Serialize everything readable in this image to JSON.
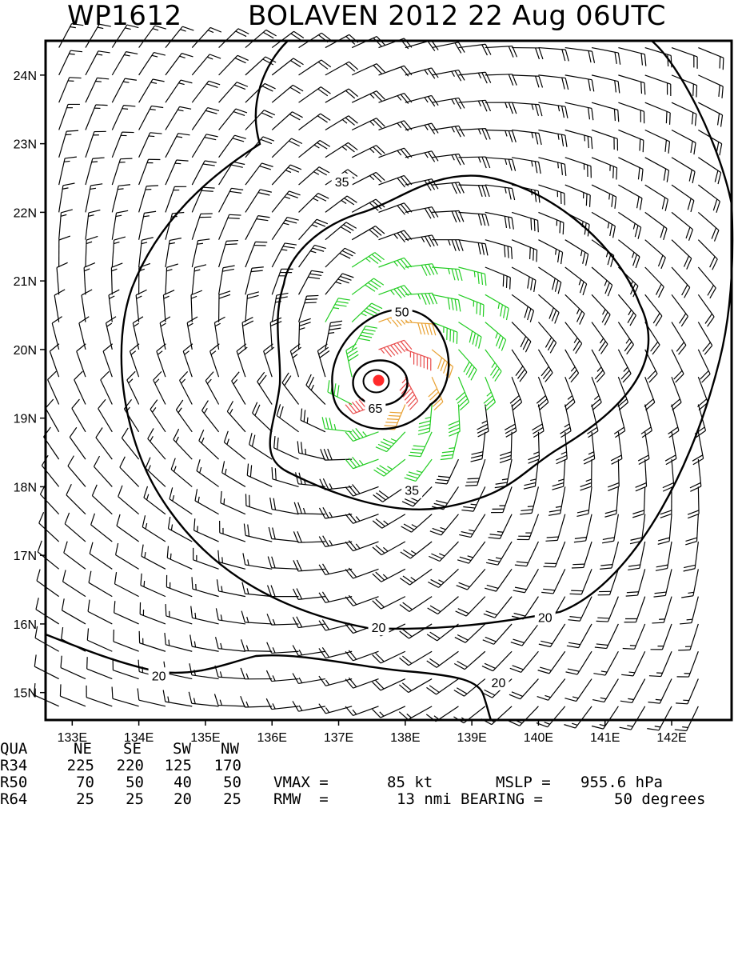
{
  "title": {
    "storm_id": "WP1612",
    "storm_name_time": "BOLAVEN 2012 22 Aug 06UTC"
  },
  "colors": {
    "weak": "#000000",
    "gale": "#22cc22",
    "storm": "#e8a030",
    "hurricane": "#e84a4a",
    "center": "#ff2a2a",
    "contour": "#000000"
  },
  "chart_data": {
    "type": "wind_barb_map",
    "units": "kt",
    "center": {
      "lon": 137.6,
      "lat": 19.55
    },
    "xlim": [
      132.6,
      142.9
    ],
    "ylim": [
      14.6,
      24.5
    ],
    "x_ticks": [
      "133E",
      "134E",
      "135E",
      "136E",
      "137E",
      "138E",
      "139E",
      "140E",
      "141E",
      "142E"
    ],
    "y_ticks": [
      "15N",
      "16N",
      "17N",
      "18N",
      "19N",
      "20N",
      "21N",
      "22N",
      "23N",
      "24N"
    ],
    "contour_levels": [
      {
        "value": 65,
        "label": "65",
        "label_lon": 137.55,
        "label_lat": 19.15
      },
      {
        "value": 50,
        "label": "50",
        "label_lon": 137.95,
        "label_lat": 20.55
      },
      {
        "value": 35,
        "label": "35",
        "label_lon": 137.05,
        "label_lat": 22.45
      },
      {
        "value": 35,
        "label": "35",
        "label_lon": 138.1,
        "label_lat": 17.95
      },
      {
        "value": 20,
        "label": "20",
        "label_lon": 137.6,
        "label_lat": 15.95
      },
      {
        "value": 20,
        "label": "20",
        "label_lon": 140.1,
        "label_lat": 16.1
      },
      {
        "value": 20,
        "label": "20",
        "label_lon": 134.3,
        "label_lat": 15.25
      },
      {
        "value": 20,
        "label": "20",
        "label_lon": 139.4,
        "label_lat": 15.15
      }
    ],
    "wind_radii": {
      "header": [
        "QUA",
        "NE",
        "SE",
        "SW",
        "NW"
      ],
      "rows": [
        {
          "label": "R34",
          "values": [
            "225",
            "220",
            "125",
            "170"
          ]
        },
        {
          "label": "R50",
          "values": [
            "70",
            "50",
            "40",
            "50"
          ]
        },
        {
          "label": "R64",
          "values": [
            "25",
            "25",
            "20",
            "25"
          ]
        }
      ]
    },
    "vmax": {
      "label": "VMAX =",
      "value": "85 kt"
    },
    "mslp": {
      "label": "MSLP =",
      "value": "955.6 hPa"
    },
    "rmw": {
      "label": "RMW  =",
      "value": "13 nmi"
    },
    "bearing": {
      "label": "BEARING =",
      "value": "50 degrees"
    }
  }
}
